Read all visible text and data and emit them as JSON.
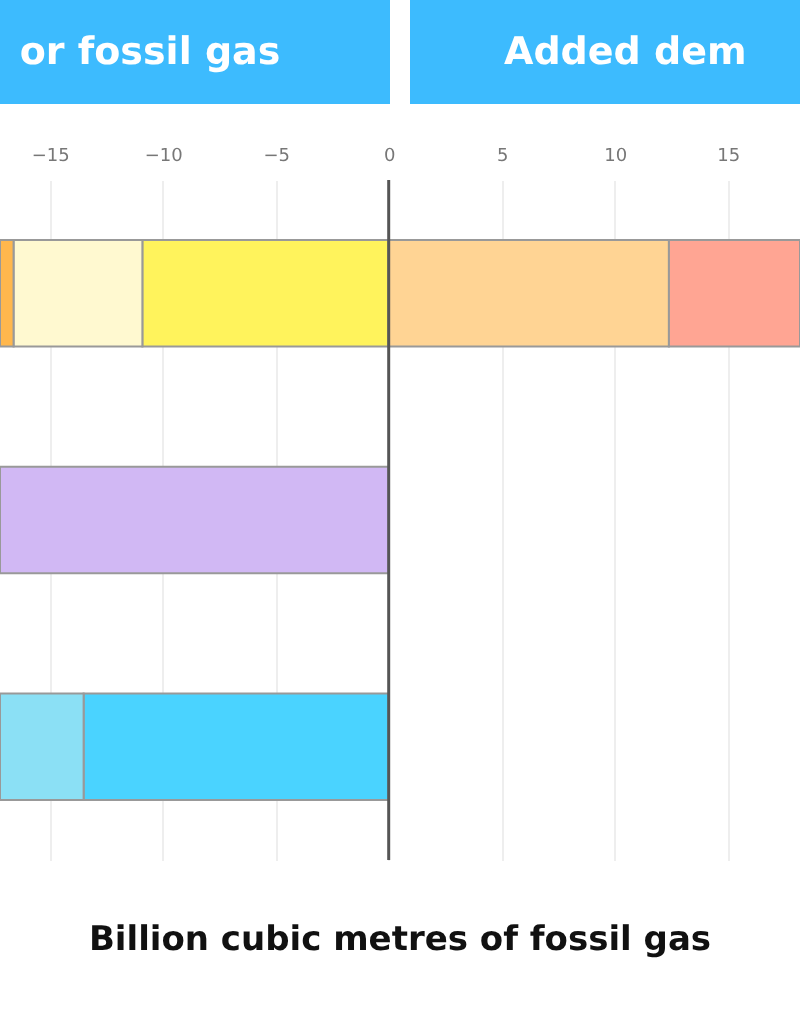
{
  "chart_data": {
    "type": "bar",
    "orientation": "horizontal",
    "stacked": true,
    "annotations": [
      "or fossil gas",
      "Added dem"
    ],
    "xlabel": "Billion cubic metres of fossil gas",
    "categories": [
      null,
      null,
      null
    ],
    "series": [
      {
        "color": "#fff35c",
        "values": [
          -10.9,
          null,
          null
        ]
      },
      {
        "color": "#fff9d0",
        "values": [
          -5.7,
          null,
          null
        ]
      },
      {
        "color": "#ffb74d",
        "values": [
          -0.6,
          null,
          null
        ]
      },
      {
        "color": "#ffd494",
        "values": [
          12.4,
          null,
          null
        ]
      },
      {
        "color": "#ffa593",
        "values": [
          5.8,
          null,
          null
        ]
      },
      {
        "color": "#d1b8f4",
        "values": [
          null,
          -17.2,
          null
        ]
      },
      {
        "color": "#4ad3ff",
        "values": [
          null,
          null,
          -13.5
        ]
      },
      {
        "color": "#8be0f5",
        "values": [
          null,
          null,
          -3.7
        ]
      }
    ],
    "xlim": [
      -17.2,
      18.2
    ],
    "xticks": [
      -15,
      -10,
      -5,
      0,
      5,
      10,
      15
    ],
    "ref_lines": [
      {
        "axis": "x",
        "value": 0,
        "color": "#555555"
      }
    ],
    "grid": "x",
    "tick_labels": "x"
  }
}
